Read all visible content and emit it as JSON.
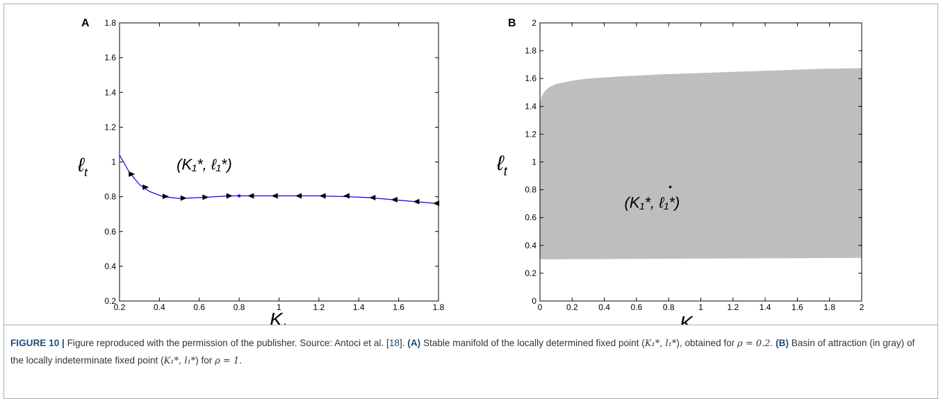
{
  "panel_labels": [
    "A",
    "B"
  ],
  "chart_data": [
    {
      "type": "line",
      "panel": "A",
      "xlabel": "K",
      "xlabel_sub": "t",
      "ylabel": "ℓ",
      "ylabel_sub": "t",
      "xlim": [
        0.2,
        1.8
      ],
      "ylim": [
        0.2,
        1.8
      ],
      "xticks": [
        0.2,
        0.4,
        0.6,
        0.8,
        1,
        1.2,
        1.4,
        1.6,
        1.8
      ],
      "xtick_labels": [
        "0.2",
        "0.4",
        "0.6",
        "0.8",
        "1",
        "1.2",
        "1.4",
        "1.6",
        "1.8"
      ],
      "yticks": [
        0.2,
        0.4,
        0.6,
        0.8,
        1,
        1.2,
        1.4,
        1.6,
        1.8
      ],
      "ytick_labels": [
        "0.2",
        "0.4",
        "0.6",
        "0.8",
        "1",
        "1.2",
        "1.4",
        "1.6",
        "1.8"
      ],
      "series": [
        {
          "color": "#0000ff",
          "x": [
            0.2,
            0.25,
            0.3,
            0.35,
            0.42,
            0.5,
            0.6,
            0.75,
            0.8,
            0.9,
            1.0,
            1.2,
            1.35,
            1.45,
            1.55,
            1.65,
            1.8
          ],
          "y": [
            1.04,
            0.94,
            0.87,
            0.83,
            0.8,
            0.79,
            0.795,
            0.805,
            0.805,
            0.805,
            0.805,
            0.805,
            0.8,
            0.795,
            0.785,
            0.775,
            0.76
          ]
        }
      ],
      "arrows": [
        {
          "x": 0.26,
          "y": 0.93,
          "dir": "forward"
        },
        {
          "x": 0.33,
          "y": 0.855,
          "dir": "forward"
        },
        {
          "x": 0.43,
          "y": 0.802,
          "dir": "forward"
        },
        {
          "x": 0.52,
          "y": 0.792,
          "dir": "forward"
        },
        {
          "x": 0.63,
          "y": 0.797,
          "dir": "forward"
        },
        {
          "x": 0.75,
          "y": 0.805,
          "dir": "forward"
        },
        {
          "x": 0.86,
          "y": 0.805,
          "dir": "backward"
        },
        {
          "x": 0.98,
          "y": 0.805,
          "dir": "backward"
        },
        {
          "x": 1.1,
          "y": 0.805,
          "dir": "backward"
        },
        {
          "x": 1.22,
          "y": 0.805,
          "dir": "backward"
        },
        {
          "x": 1.34,
          "y": 0.805,
          "dir": "backward"
        },
        {
          "x": 1.47,
          "y": 0.795,
          "dir": "backward"
        },
        {
          "x": 1.58,
          "y": 0.783,
          "dir": "backward"
        },
        {
          "x": 1.69,
          "y": 0.772,
          "dir": "backward"
        },
        {
          "x": 1.79,
          "y": 0.762,
          "dir": "backward"
        }
      ],
      "fixed_point": {
        "x": 0.8,
        "y": 0.805,
        "label": "(K₁*, ℓ₁*)"
      }
    },
    {
      "type": "area",
      "panel": "B",
      "xlabel": "K",
      "xlabel_sub": "t",
      "ylabel": "ℓ",
      "ylabel_sub": "t",
      "xlim": [
        0,
        2
      ],
      "ylim": [
        0,
        2
      ],
      "xticks": [
        0,
        0.2,
        0.4,
        0.6,
        0.8,
        1,
        1.2,
        1.4,
        1.6,
        1.8,
        2
      ],
      "xtick_labels": [
        "0",
        "0.2",
        "0.4",
        "0.6",
        "0.8",
        "1",
        "1.2",
        "1.4",
        "1.6",
        "1.8",
        "2"
      ],
      "yticks": [
        0,
        0.2,
        0.4,
        0.6,
        0.8,
        1,
        1.2,
        1.4,
        1.6,
        1.8,
        2
      ],
      "ytick_labels": [
        "0",
        "0.2",
        "0.4",
        "0.6",
        "0.8",
        "1",
        "1.2",
        "1.4",
        "1.6",
        "1.8",
        "2"
      ],
      "region_color": "#bebebe",
      "upper_boundary": {
        "x": [
          0,
          0.01,
          0.03,
          0.06,
          0.1,
          0.2,
          0.3,
          0.5,
          0.75,
          1.0,
          1.25,
          1.5,
          1.75,
          2.0
        ],
        "y": [
          1.42,
          1.47,
          1.51,
          1.54,
          1.56,
          1.585,
          1.6,
          1.615,
          1.63,
          1.64,
          1.65,
          1.66,
          1.67,
          1.675
        ]
      },
      "lower_boundary": {
        "x": [
          0,
          1.0,
          2.0
        ],
        "y": [
          0.3,
          0.305,
          0.31
        ]
      },
      "fixed_point": {
        "x": 0.81,
        "y": 0.82,
        "label": "(K₁*, ℓ₁*)"
      }
    }
  ],
  "caption": {
    "figure_label": "FIGURE 10 |",
    "text1": " Figure reproduced with the permission of the publisher. Source: Antoci et al. [",
    "ref": "18",
    "text2": "]. ",
    "a_label": "(A)",
    "a_text": " Stable manifold of the locally determined fixed point (",
    "a_point": "K₁*, l₁*",
    "a_text2": "), obtained for ",
    "a_rho": "ρ = 0.2",
    "a_text3": ". ",
    "b_label": "(B)",
    "b_text": " Basin of attraction (in gray) of the locally indeterminate fixed point (",
    "b_point": "K₁*, l₁*",
    "b_text2": ") for ",
    "b_rho": "ρ = 1",
    "b_text3": "."
  }
}
